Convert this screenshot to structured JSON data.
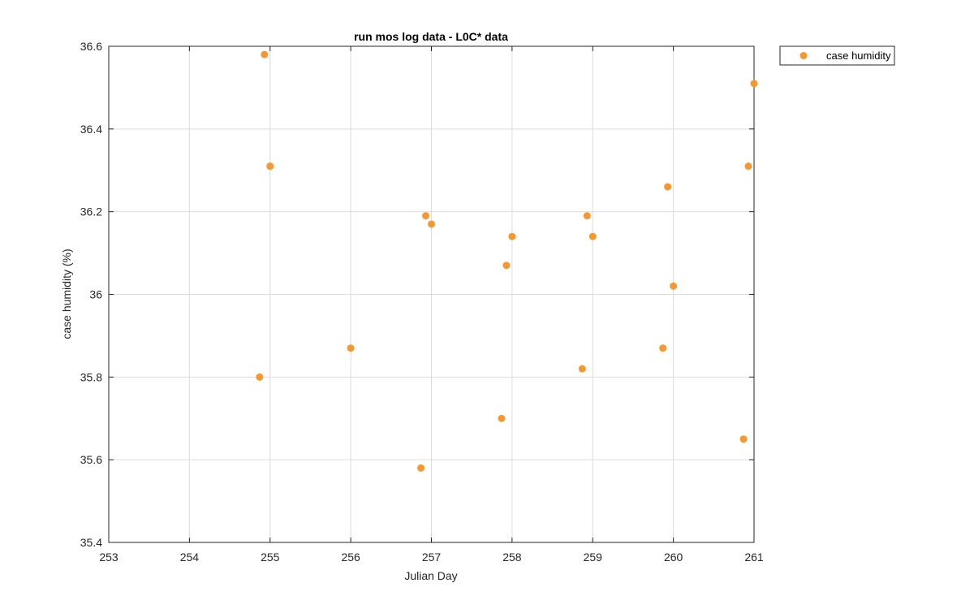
{
  "chart_data": {
    "type": "scatter",
    "title": "run mos log data - L0C* data",
    "xlabel": "Julian Day",
    "ylabel": "case humidity (%)",
    "xlim": [
      253,
      261
    ],
    "ylim": [
      35.4,
      36.6
    ],
    "xticks": [
      "253",
      "254",
      "255",
      "256",
      "257",
      "258",
      "259",
      "260",
      "261"
    ],
    "yticks": [
      "35.4",
      "35.6",
      "35.8",
      "36",
      "36.2",
      "36.4",
      "36.6"
    ],
    "grid": true,
    "legend_position": "outside top-right",
    "series": [
      {
        "name": "case humidity",
        "color": "#F7972E",
        "marker": "circle",
        "points": [
          {
            "x": 254.87,
            "y": 35.8
          },
          {
            "x": 254.93,
            "y": 36.58
          },
          {
            "x": 255.0,
            "y": 36.31
          },
          {
            "x": 256.0,
            "y": 35.87
          },
          {
            "x": 256.87,
            "y": 35.58
          },
          {
            "x": 256.93,
            "y": 36.19
          },
          {
            "x": 257.0,
            "y": 36.17
          },
          {
            "x": 257.87,
            "y": 35.7
          },
          {
            "x": 257.93,
            "y": 36.07
          },
          {
            "x": 258.0,
            "y": 36.14
          },
          {
            "x": 258.87,
            "y": 35.82
          },
          {
            "x": 258.93,
            "y": 36.19
          },
          {
            "x": 259.0,
            "y": 36.14
          },
          {
            "x": 259.87,
            "y": 35.87
          },
          {
            "x": 259.93,
            "y": 36.26
          },
          {
            "x": 260.0,
            "y": 36.02
          },
          {
            "x": 260.87,
            "y": 35.65
          },
          {
            "x": 260.93,
            "y": 36.31
          },
          {
            "x": 261.0,
            "y": 36.51
          }
        ]
      }
    ]
  }
}
